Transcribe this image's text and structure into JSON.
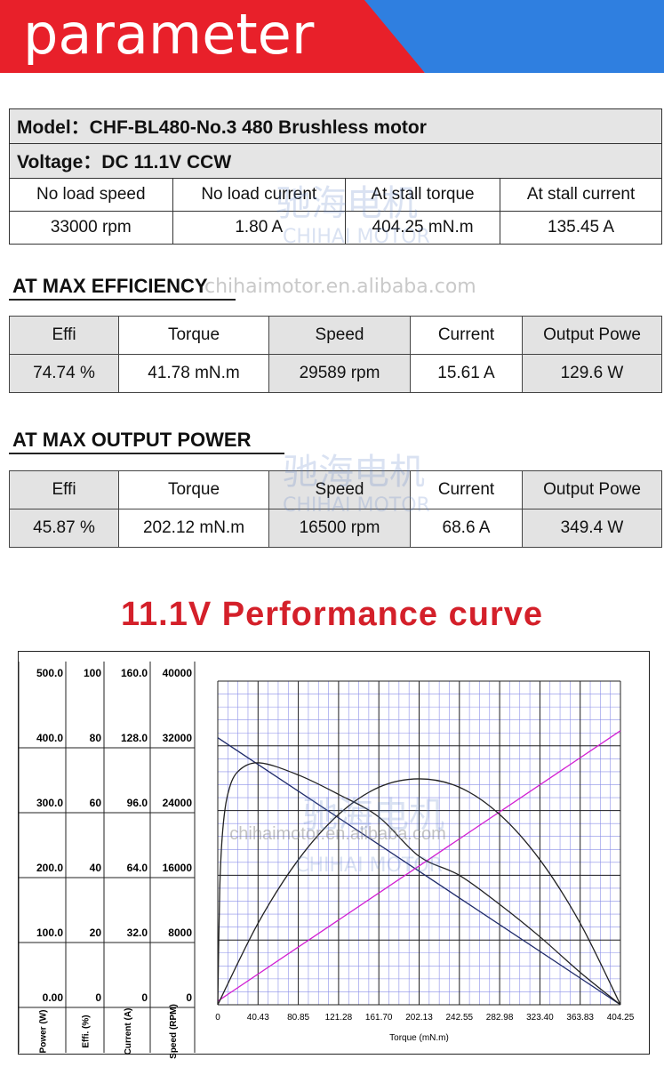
{
  "header": {
    "title": "parameter",
    "colors": {
      "red": "#e8202a",
      "blue": "#2f7fe0"
    }
  },
  "spec": {
    "model": "Model：CHF-BL480-No.3  480 Brushless motor",
    "voltage": "Voltage：DC 11.1V   CCW",
    "headers": [
      "No load speed",
      "No load current",
      "At stall torque",
      "At stall current"
    ],
    "values": [
      "33000 rpm",
      "1.80 A",
      "404.25  mN.m",
      "135.45 A"
    ]
  },
  "max_efficiency": {
    "title": "AT MAX EFFICIENCY",
    "headers": [
      "Effi",
      "Torque",
      "Speed",
      "Current",
      "Output Powe"
    ],
    "values": [
      "74.74 %",
      "41.78 mN.m",
      "29589 rpm",
      "15.61 A",
      "129.6 W"
    ]
  },
  "max_output": {
    "title": "AT MAX OUTPUT POWER",
    "headers": [
      "Effi",
      "Torque",
      "Speed",
      "Current",
      "Output Powe"
    ],
    "values": [
      "45.87 %",
      "202.12  mN.m",
      "16500 rpm",
      "68.6 A",
      "349.4 W"
    ]
  },
  "watermark": {
    "cn": "驰海电机",
    "en": "CHIHAI MOTOR",
    "url": "chihaimotor.en.alibaba.com",
    "reg": "®"
  },
  "curve_title": "11.1V  Performance curve",
  "chart_data": {
    "type": "line",
    "xlabel": "Torque (mN.m)",
    "x_ticks": [
      "0",
      "40.43",
      "80.85",
      "121.28",
      "161.70",
      "202.13",
      "242.55",
      "282.98",
      "323.40",
      "363.83",
      "404.25"
    ],
    "xlim": [
      0,
      404.25
    ],
    "axes": [
      {
        "label": "Power (W)",
        "ticks": [
          "500.0",
          "400.0",
          "300.0",
          "200.0",
          "100.0",
          "0.00"
        ],
        "range": [
          0,
          500
        ]
      },
      {
        "label": "Effi. (%)",
        "ticks": [
          "100",
          "80",
          "60",
          "40",
          "20",
          "0"
        ],
        "range": [
          0,
          100
        ]
      },
      {
        "label": "Current (A)",
        "ticks": [
          "160.0",
          "128.0",
          "96.0",
          "64.0",
          "32.0",
          "0"
        ],
        "range": [
          0,
          160
        ]
      },
      {
        "label": "Speed (RPM)",
        "ticks": [
          "40000",
          "32000",
          "24000",
          "16000",
          "8000",
          "0"
        ],
        "range": [
          0,
          40000
        ]
      }
    ],
    "series": [
      {
        "axis": "Speed (RPM)",
        "color": "#1e2a6a",
        "x": [
          0,
          404.25
        ],
        "y": [
          33000,
          0
        ]
      },
      {
        "axis": "Current (A)",
        "color": "#d21fd2",
        "x": [
          0,
          404.25
        ],
        "y": [
          1.8,
          135.45
        ]
      },
      {
        "axis": "Power (W)",
        "color": "#222222",
        "x": [
          0,
          40.43,
          80.85,
          121.28,
          161.7,
          202.13,
          242.55,
          282.98,
          323.4,
          363.83,
          404.25
        ],
        "y": [
          0,
          126,
          224,
          294,
          336,
          349,
          336,
          294,
          224,
          126,
          0
        ]
      },
      {
        "axis": "Effi. (%)",
        "color": "#222222",
        "x": [
          0,
          2,
          5,
          10,
          20,
          41.78,
          80.85,
          121.28,
          161.7,
          202.13,
          242.55,
          282.98,
          323.4,
          363.83,
          404.25
        ],
        "y": [
          0,
          36,
          54,
          65,
          72,
          74.74,
          71,
          65,
          58,
          45.87,
          40,
          31,
          21,
          10,
          0
        ]
      }
    ],
    "grid": true
  }
}
